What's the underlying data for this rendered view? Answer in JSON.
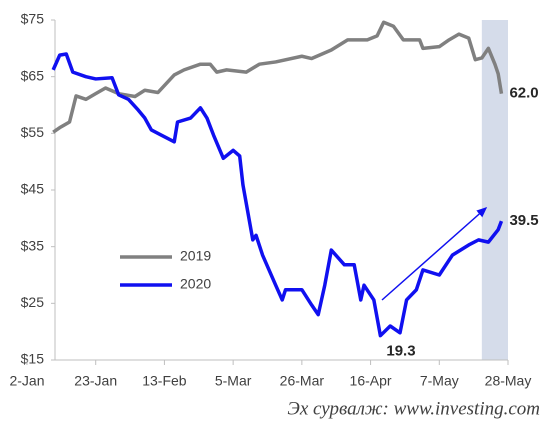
{
  "chart_data": {
    "type": "line",
    "xlim": [
      "2-Jan",
      "28-May"
    ],
    "xticks": [
      "2-Jan",
      "23-Jan",
      "13-Feb",
      "5-Mar",
      "26-Mar",
      "16-Apr",
      "7-May",
      "28-May"
    ],
    "ylim": [
      15,
      75
    ],
    "yticks": [
      {
        "value": 15,
        "label": "$15"
      },
      {
        "value": 25,
        "label": "$25"
      },
      {
        "value": 35,
        "label": "$35"
      },
      {
        "value": 45,
        "label": "$45"
      },
      {
        "value": 55,
        "label": "$55"
      },
      {
        "value": 65,
        "label": "$65"
      },
      {
        "value": 75,
        "label": "$75"
      }
    ],
    "shade_x": [
      "20-May",
      "28-May"
    ],
    "shade_color": "#d5dcea",
    "legend": "center-left",
    "series": [
      {
        "name": "2019",
        "color": "#808080",
        "x": [
          "10-Jan",
          "12-Jan",
          "15-Jan",
          "17-Jan",
          "20-Jan",
          "23-Jan",
          "26-Jan",
          "30-Jan",
          "4-Feb",
          "7-Feb",
          "11-Feb",
          "16-Feb",
          "19-Feb",
          "24-Feb",
          "27-Feb",
          "29-Feb",
          "3-Mar",
          "9-Mar",
          "13-Mar",
          "18-Mar",
          "26-Mar",
          "29-Mar",
          "4-Apr",
          "9-Apr",
          "15-Apr",
          "18-Apr",
          "20-Apr",
          "23-Apr",
          "26-Apr",
          "1-May",
          "2-May",
          "7-May",
          "10-May",
          "13-May",
          "16-May",
          "18-May",
          "20-May",
          "22-May",
          "24-May",
          "25-May",
          "26-May"
        ],
        "values": [
          55.2,
          56,
          57,
          61.6,
          61,
          62,
          63,
          62,
          61.5,
          62.6,
          62.2,
          65.3,
          66.2,
          67.2,
          67.2,
          65.8,
          66.2,
          65.8,
          67.2,
          67.6,
          68.6,
          68.2,
          69.7,
          71.5,
          71.5,
          72.2,
          74.6,
          73.9,
          71.5,
          71.5,
          70,
          70.3,
          71.5,
          72.5,
          71.8,
          68,
          68.3,
          70,
          67.2,
          65.5,
          62.0
        ]
      },
      {
        "name": "2020",
        "color": "#1010f0",
        "x": [
          "10-Jan",
          "12-Jan",
          "14-Jan",
          "16-Jan",
          "20-Jan",
          "23-Jan",
          "28-Jan",
          "30-Jan",
          "2-Feb",
          "5-Feb",
          "7-Feb",
          "9-Feb",
          "12-Feb",
          "16-Feb",
          "17-Feb",
          "21-Feb",
          "24-Feb",
          "26-Feb",
          "28-Feb",
          "2-Mar",
          "5-Mar",
          "7-Mar",
          "8-Mar",
          "11-Mar",
          "12-Mar",
          "14-Mar",
          "18-Mar",
          "20-Mar",
          "21-Mar",
          "26-Mar",
          "29-Mar",
          "31-Mar",
          "2-Apr",
          "4-Apr",
          "8-Apr",
          "11-Apr",
          "13-Apr",
          "14-Apr",
          "17-Apr",
          "19-Apr",
          "22-Apr",
          "25-Apr",
          "27-Apr",
          "30-Apr",
          "2-May",
          "7-May",
          "11-May",
          "16-May",
          "19-May",
          "22-May",
          "25-May",
          "26-May"
        ],
        "values": [
          66.2,
          68.8,
          69,
          65.8,
          65,
          64.6,
          64.8,
          61.8,
          61,
          59.1,
          57.7,
          55.6,
          54.7,
          53.5,
          57,
          57.7,
          59.5,
          57.7,
          54.7,
          50.6,
          52,
          51,
          45.9,
          36.2,
          37,
          33.5,
          28.2,
          25.6,
          27.4,
          27.4,
          24.7,
          23,
          28.2,
          34.4,
          31.8,
          31.8,
          25.6,
          28.2,
          25.6,
          19.3,
          21,
          19.8,
          25.6,
          27.4,
          30.9,
          30,
          33.5,
          35.3,
          36.2,
          35.8,
          38,
          39.5
        ]
      }
    ],
    "annotations": [
      {
        "label": "62.0",
        "value": 62.0,
        "x": "26-May"
      },
      {
        "label": "39.5",
        "value": 39.5,
        "x": "26-May"
      },
      {
        "label": "19.3",
        "value": 19.3,
        "x": "19-Apr"
      }
    ],
    "source": "Эх сурвалж: www.investing.com"
  }
}
